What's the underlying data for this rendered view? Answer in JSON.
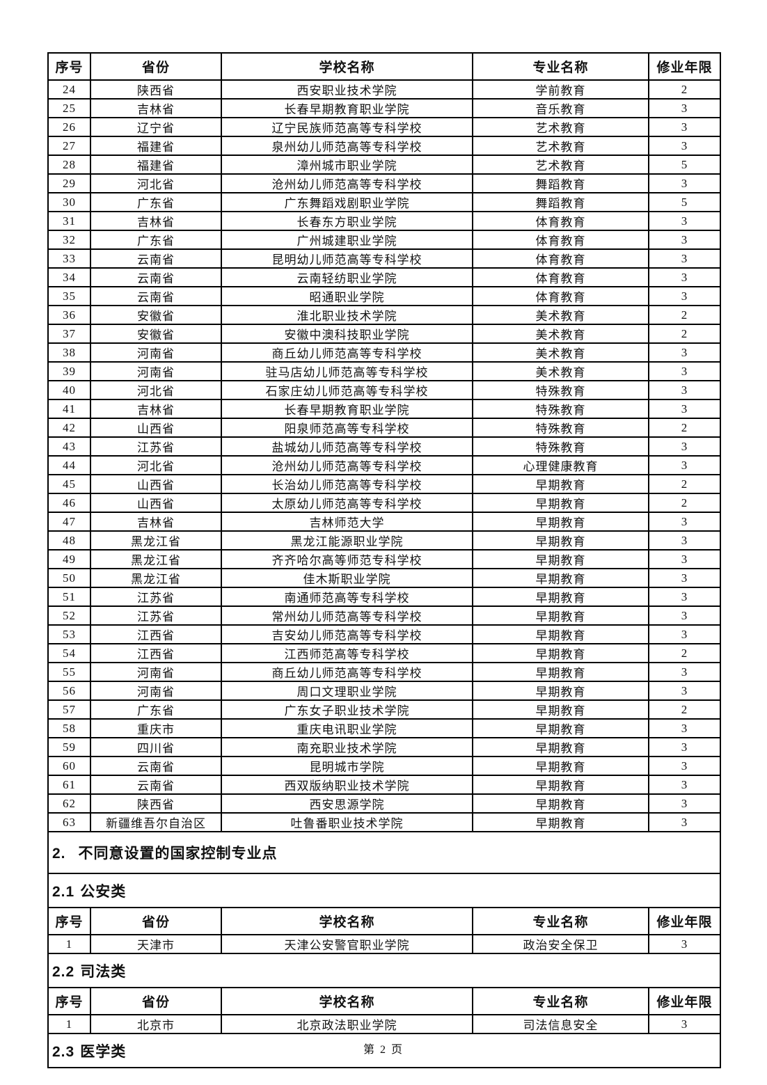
{
  "page": {
    "footer": "第 2 页"
  },
  "table": {
    "columns": [
      "序号",
      "省份",
      "学校名称",
      "专业名称",
      "修业年限"
    ],
    "sections": [
      {
        "type": "rows",
        "rows": [
          [
            "24",
            "陕西省",
            "西安职业技术学院",
            "学前教育",
            "2"
          ],
          [
            "25",
            "吉林省",
            "长春早期教育职业学院",
            "音乐教育",
            "3"
          ],
          [
            "26",
            "辽宁省",
            "辽宁民族师范高等专科学校",
            "艺术教育",
            "3"
          ],
          [
            "27",
            "福建省",
            "泉州幼儿师范高等专科学校",
            "艺术教育",
            "3"
          ],
          [
            "28",
            "福建省",
            "漳州城市职业学院",
            "艺术教育",
            "5"
          ],
          [
            "29",
            "河北省",
            "沧州幼儿师范高等专科学校",
            "舞蹈教育",
            "3"
          ],
          [
            "30",
            "广东省",
            "广东舞蹈戏剧职业学院",
            "舞蹈教育",
            "5"
          ],
          [
            "31",
            "吉林省",
            "长春东方职业学院",
            "体育教育",
            "3"
          ],
          [
            "32",
            "广东省",
            "广州城建职业学院",
            "体育教育",
            "3"
          ],
          [
            "33",
            "云南省",
            "昆明幼儿师范高等专科学校",
            "体育教育",
            "3"
          ],
          [
            "34",
            "云南省",
            "云南轻纺职业学院",
            "体育教育",
            "3"
          ],
          [
            "35",
            "云南省",
            "昭通职业学院",
            "体育教育",
            "3"
          ],
          [
            "36",
            "安徽省",
            "淮北职业技术学院",
            "美术教育",
            "2"
          ],
          [
            "37",
            "安徽省",
            "安徽中澳科技职业学院",
            "美术教育",
            "2"
          ],
          [
            "38",
            "河南省",
            "商丘幼儿师范高等专科学校",
            "美术教育",
            "3"
          ],
          [
            "39",
            "河南省",
            "驻马店幼儿师范高等专科学校",
            "美术教育",
            "3"
          ],
          [
            "40",
            "河北省",
            "石家庄幼儿师范高等专科学校",
            "特殊教育",
            "3"
          ],
          [
            "41",
            "吉林省",
            "长春早期教育职业学院",
            "特殊教育",
            "3"
          ],
          [
            "42",
            "山西省",
            "阳泉师范高等专科学校",
            "特殊教育",
            "2"
          ],
          [
            "43",
            "江苏省",
            "盐城幼儿师范高等专科学校",
            "特殊教育",
            "3"
          ],
          [
            "44",
            "河北省",
            "沧州幼儿师范高等专科学校",
            "心理健康教育",
            "3"
          ],
          [
            "45",
            "山西省",
            "长治幼儿师范高等专科学校",
            "早期教育",
            "2"
          ],
          [
            "46",
            "山西省",
            "太原幼儿师范高等专科学校",
            "早期教育",
            "2"
          ],
          [
            "47",
            "吉林省",
            "吉林师范大学",
            "早期教育",
            "3"
          ],
          [
            "48",
            "黑龙江省",
            "黑龙江能源职业学院",
            "早期教育",
            "3"
          ],
          [
            "49",
            "黑龙江省",
            "齐齐哈尔高等师范专科学校",
            "早期教育",
            "3"
          ],
          [
            "50",
            "黑龙江省",
            "佳木斯职业学院",
            "早期教育",
            "3"
          ],
          [
            "51",
            "江苏省",
            "南通师范高等专科学校",
            "早期教育",
            "3"
          ],
          [
            "52",
            "江苏省",
            "常州幼儿师范高等专科学校",
            "早期教育",
            "3"
          ],
          [
            "53",
            "江西省",
            "吉安幼儿师范高等专科学校",
            "早期教育",
            "3"
          ],
          [
            "54",
            "江西省",
            "江西师范高等专科学校",
            "早期教育",
            "2"
          ],
          [
            "55",
            "河南省",
            "商丘幼儿师范高等专科学校",
            "早期教育",
            "3"
          ],
          [
            "56",
            "河南省",
            "周口文理职业学院",
            "早期教育",
            "3"
          ],
          [
            "57",
            "广东省",
            "广东女子职业技术学院",
            "早期教育",
            "2"
          ],
          [
            "58",
            "重庆市",
            "重庆电讯职业学院",
            "早期教育",
            "3"
          ],
          [
            "59",
            "四川省",
            "南充职业技术学院",
            "早期教育",
            "3"
          ],
          [
            "60",
            "云南省",
            "昆明城市学院",
            "早期教育",
            "3"
          ],
          [
            "61",
            "云南省",
            "西双版纳职业技术学院",
            "早期教育",
            "3"
          ],
          [
            "62",
            "陕西省",
            "西安思源学院",
            "早期教育",
            "3"
          ],
          [
            "63",
            "新疆维吾尔自治区",
            "吐鲁番职业技术学院",
            "早期教育",
            "3"
          ]
        ]
      },
      {
        "type": "heading",
        "level": 1,
        "number": "2.",
        "title": "不同意设置的国家控制专业点"
      },
      {
        "type": "heading",
        "level": 2,
        "number": "2.1",
        "title": "公安类"
      },
      {
        "type": "rows",
        "rows": [
          [
            "1",
            "天津市",
            "天津公安警官职业学院",
            "政治安全保卫",
            "3"
          ]
        ]
      },
      {
        "type": "heading",
        "level": 2,
        "number": "2.2",
        "title": "司法类"
      },
      {
        "type": "rows",
        "rows": [
          [
            "1",
            "北京市",
            "北京政法职业学院",
            "司法信息安全",
            "3"
          ]
        ]
      },
      {
        "type": "heading",
        "level": 2,
        "number": "2.3",
        "title": "医学类"
      }
    ]
  }
}
